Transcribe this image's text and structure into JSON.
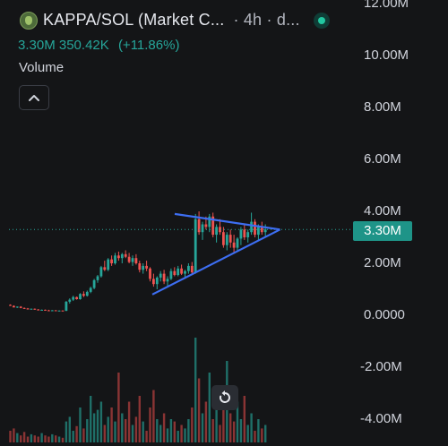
{
  "header": {
    "title": "KAPPA/SOL (Market C...",
    "interval": "· 4h · d...",
    "price": "3.30M",
    "change": "350.42K",
    "change_pct": "(+11.86%)"
  },
  "volume_label": "Volume",
  "price_tag": "3.30M",
  "icons": {
    "logo": "token-logo-icon",
    "live": "live-status-icon",
    "collapse": "chevron-up-icon",
    "reset": "reset-chart-icon"
  },
  "colors": {
    "up": "#26a69a",
    "down": "#ef5350",
    "trendline": "#3d6ef2",
    "background": "#141517"
  },
  "chart_data": {
    "type": "candlestick",
    "y_axis": {
      "ticks": [
        "12.00M",
        "10.00M",
        "8.00M",
        "6.00M",
        "4.00M",
        "2.00M",
        "0.0000",
        "-2.00M",
        "-4.00M"
      ],
      "range": [
        -4.6,
        12.0
      ],
      "unit": "M"
    },
    "last_price": 3.3,
    "trendlines": [
      {
        "name": "upper",
        "from": [
          0.39,
          3.9
        ],
        "to": [
          0.625,
          3.3
        ]
      },
      {
        "name": "lower",
        "from": [
          0.34,
          0.8
        ],
        "to": [
          0.625,
          3.3
        ]
      }
    ],
    "candles": [
      [
        0.4,
        0.42,
        0.38,
        0.36
      ],
      [
        0.36,
        0.38,
        0.33,
        0.3
      ],
      [
        0.3,
        0.34,
        0.28,
        0.33
      ],
      [
        0.33,
        0.35,
        0.27,
        0.28
      ],
      [
        0.28,
        0.3,
        0.25,
        0.26
      ],
      [
        0.26,
        0.28,
        0.22,
        0.24
      ],
      [
        0.24,
        0.26,
        0.22,
        0.25
      ],
      [
        0.25,
        0.26,
        0.21,
        0.22
      ],
      [
        0.22,
        0.24,
        0.19,
        0.2
      ],
      [
        0.2,
        0.22,
        0.18,
        0.21
      ],
      [
        0.21,
        0.22,
        0.18,
        0.19
      ],
      [
        0.19,
        0.21,
        0.17,
        0.18
      ],
      [
        0.18,
        0.2,
        0.16,
        0.19
      ],
      [
        0.19,
        0.2,
        0.16,
        0.17
      ],
      [
        0.17,
        0.19,
        0.15,
        0.18
      ],
      [
        0.18,
        0.19,
        0.16,
        0.17
      ],
      [
        0.17,
        0.55,
        0.16,
        0.52
      ],
      [
        0.52,
        0.65,
        0.45,
        0.6
      ],
      [
        0.6,
        0.75,
        0.55,
        0.7
      ],
      [
        0.7,
        0.72,
        0.6,
        0.62
      ],
      [
        0.62,
        0.85,
        0.6,
        0.82
      ],
      [
        0.82,
        0.92,
        0.7,
        0.75
      ],
      [
        0.75,
        0.95,
        0.72,
        0.9
      ],
      [
        0.9,
        1.1,
        0.85,
        1.05
      ],
      [
        1.05,
        1.4,
        1.0,
        1.35
      ],
      [
        1.35,
        1.55,
        1.25,
        1.5
      ],
      [
        1.5,
        1.9,
        1.45,
        1.85
      ],
      [
        1.85,
        2.1,
        1.7,
        1.75
      ],
      [
        1.75,
        2.2,
        1.7,
        2.15
      ],
      [
        2.15,
        2.3,
        1.9,
        2.0
      ],
      [
        2.0,
        2.4,
        1.95,
        2.3
      ],
      [
        2.3,
        2.45,
        2.1,
        2.2
      ],
      [
        2.2,
        2.4,
        2.0,
        2.35
      ],
      [
        2.35,
        2.5,
        2.2,
        2.25
      ],
      [
        2.25,
        2.4,
        2.0,
        2.05
      ],
      [
        2.05,
        2.3,
        1.9,
        2.2
      ],
      [
        2.2,
        2.35,
        1.95,
        2.0
      ],
      [
        2.0,
        2.1,
        1.65,
        1.75
      ],
      [
        1.75,
        2.0,
        1.6,
        1.9
      ],
      [
        1.9,
        2.1,
        1.7,
        1.8
      ],
      [
        1.8,
        1.85,
        1.3,
        1.4
      ],
      [
        1.4,
        1.6,
        1.1,
        1.2
      ],
      [
        1.2,
        1.5,
        1.0,
        1.45
      ],
      [
        1.45,
        1.7,
        1.3,
        1.6
      ],
      [
        1.6,
        1.75,
        1.2,
        1.3
      ],
      [
        1.3,
        1.5,
        1.1,
        1.4
      ],
      [
        1.4,
        1.8,
        1.35,
        1.7
      ],
      [
        1.7,
        1.85,
        1.5,
        1.55
      ],
      [
        1.55,
        1.9,
        1.5,
        1.8
      ],
      [
        1.8,
        1.95,
        1.55,
        1.6
      ],
      [
        1.6,
        1.75,
        1.4,
        1.7
      ],
      [
        1.7,
        2.0,
        1.6,
        1.9
      ],
      [
        1.9,
        2.05,
        1.55,
        1.65
      ],
      [
        1.65,
        3.9,
        1.6,
        3.7
      ],
      [
        3.7,
        4.0,
        3.1,
        3.2
      ],
      [
        3.2,
        3.6,
        2.9,
        3.5
      ],
      [
        3.5,
        3.8,
        3.3,
        3.4
      ],
      [
        3.4,
        3.9,
        3.2,
        3.8
      ],
      [
        3.8,
        3.95,
        3.0,
        3.1
      ],
      [
        3.1,
        3.5,
        2.8,
        3.4
      ],
      [
        3.4,
        3.7,
        3.1,
        3.2
      ],
      [
        3.2,
        3.4,
        2.6,
        2.7
      ],
      [
        2.7,
        3.2,
        2.5,
        3.1
      ],
      [
        3.1,
        3.3,
        2.6,
        2.8
      ],
      [
        2.8,
        3.1,
        2.4,
        2.6
      ],
      [
        2.6,
        3.0,
        2.45,
        2.95
      ],
      [
        2.95,
        3.4,
        2.7,
        3.3
      ],
      [
        3.3,
        3.5,
        2.9,
        3.0
      ],
      [
        3.0,
        3.3,
        2.8,
        3.2
      ],
      [
        3.2,
        3.95,
        3.1,
        3.6
      ],
      [
        3.6,
        3.7,
        3.0,
        3.1
      ],
      [
        3.1,
        3.5,
        2.9,
        3.4
      ],
      [
        3.4,
        3.6,
        3.1,
        3.2
      ],
      [
        3.2,
        3.5,
        3.0,
        3.3
      ]
    ],
    "volumes": [
      0.1,
      0.12,
      0.08,
      0.06,
      0.09,
      0.05,
      0.07,
      0.06,
      0.05,
      0.08,
      0.06,
      0.05,
      0.07,
      0.06,
      0.05,
      0.04,
      0.18,
      0.22,
      0.1,
      0.14,
      0.3,
      0.12,
      0.2,
      0.4,
      0.25,
      0.28,
      0.35,
      0.15,
      0.22,
      0.3,
      0.18,
      0.6,
      0.25,
      0.2,
      0.35,
      0.15,
      0.22,
      0.4,
      0.18,
      0.1,
      0.3,
      0.45,
      0.2,
      0.15,
      0.25,
      0.12,
      0.2,
      0.18,
      0.1,
      0.15,
      0.12,
      0.2,
      0.3,
      0.9,
      0.55,
      0.25,
      0.35,
      0.6,
      0.2,
      0.45,
      0.15,
      0.3,
      0.7,
      0.25,
      0.18,
      0.35,
      0.2,
      0.4,
      0.15,
      0.25,
      0.1,
      0.2,
      0.12,
      0.15
    ]
  }
}
